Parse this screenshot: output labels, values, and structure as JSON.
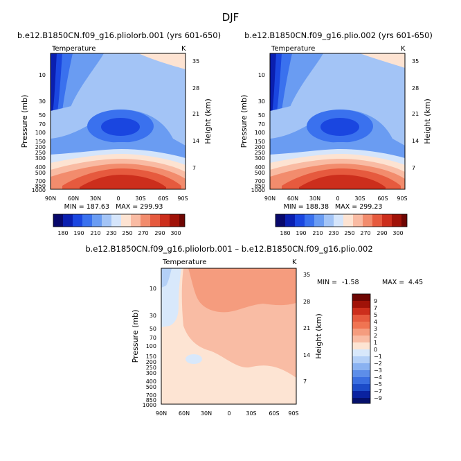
{
  "page": {
    "title": "DJF"
  },
  "chart_data": [
    {
      "type": "heatmap",
      "title": "b.e12.B1850CN.f09_g16.pliolorb.001 (yrs 601-650)",
      "left_label": "Temperature",
      "units": "K",
      "ylabel": "Pressure (mb)",
      "y2label": "Height (km)",
      "x_ticks": [
        "90N",
        "60N",
        "30N",
        "0",
        "30S",
        "60S",
        "90S"
      ],
      "y_ticks": [
        "10",
        "30",
        "50",
        "70",
        "100",
        "150",
        "200",
        "250",
        "300",
        "400",
        "500",
        "700",
        "850",
        "1000"
      ],
      "y2_ticks": [
        "35",
        "28",
        "21",
        "14",
        "7"
      ],
      "min_label": "MIN = 187.63",
      "max_label": "MAX = 299.93",
      "min": 187.63,
      "max": 299.93,
      "colorbar_ticks": [
        "180",
        "190",
        "210",
        "230",
        "250",
        "270",
        "290",
        "300"
      ],
      "colorbar_levels": [
        180,
        190,
        200,
        210,
        220,
        230,
        240,
        250,
        260,
        270,
        280,
        290,
        300
      ]
    },
    {
      "type": "heatmap",
      "title": "b.e12.B1850CN.f09_g16.plio.002 (yrs 601-650)",
      "left_label": "Temperature",
      "units": "K",
      "ylabel": "Pressure (mb)",
      "y2label": "Height (km)",
      "x_ticks": [
        "90N",
        "60N",
        "30N",
        "0",
        "30S",
        "60S",
        "90S"
      ],
      "y_ticks": [
        "10",
        "30",
        "50",
        "70",
        "100",
        "150",
        "200",
        "250",
        "300",
        "400",
        "500",
        "700",
        "850",
        "1000"
      ],
      "y2_ticks": [
        "35",
        "28",
        "21",
        "14",
        "7"
      ],
      "min_label": "MIN = 188.38",
      "max_label": "MAX = 299.23",
      "min": 188.38,
      "max": 299.23,
      "colorbar_ticks": [
        "180",
        "190",
        "210",
        "230",
        "250",
        "270",
        "290",
        "300"
      ],
      "colorbar_levels": [
        180,
        190,
        200,
        210,
        220,
        230,
        240,
        250,
        260,
        270,
        280,
        290,
        300
      ]
    },
    {
      "type": "heatmap",
      "title": "b.e12.B1850CN.f09_g16.pliolorb.001 – b.e12.B1850CN.f09_g16.plio.002",
      "left_label": "Temperature",
      "units": "K",
      "ylabel": "Pressure (mb)",
      "y2label": "Height (km)",
      "x_ticks": [
        "90N",
        "60N",
        "30N",
        "0",
        "30S",
        "60S",
        "90S"
      ],
      "y_ticks": [
        "10",
        "30",
        "50",
        "70",
        "100",
        "150",
        "200",
        "250",
        "300",
        "400",
        "500",
        "700",
        "850",
        "1000"
      ],
      "y2_ticks": [
        "35",
        "28",
        "21",
        "14",
        "7"
      ],
      "min_label": "MIN =",
      "min_value": "-1.58",
      "max_label": "MAX =",
      "max_value": "4.45",
      "min": -1.58,
      "max": 4.45,
      "colorbar_ticks": [
        "9",
        "7",
        "5",
        "4",
        "3",
        "2",
        "1",
        "0",
        "−1",
        "−2",
        "−3",
        "−4",
        "−5",
        "−7",
        "−9"
      ]
    }
  ],
  "colors": {
    "abs_scale": [
      "#08086b",
      "#0a1fb0",
      "#1a46e0",
      "#3a71ee",
      "#6a9cf2",
      "#a3c4f6",
      "#d5e5fb",
      "#fde3d2",
      "#f9bba3",
      "#f28c6d",
      "#e65a3e",
      "#cc2e1c",
      "#a01208",
      "#6e0603"
    ],
    "diff_scale": [
      "#6e0603",
      "#a01208",
      "#cc2e1c",
      "#e65a3e",
      "#f07452",
      "#f59c7e",
      "#f9bca4",
      "#fde4d3",
      "#d8e8fb",
      "#b4d0f7",
      "#8ab2f1",
      "#5d8ee9",
      "#3a6ee0",
      "#1c4bc8",
      "#0a22a0",
      "#05106b"
    ]
  }
}
